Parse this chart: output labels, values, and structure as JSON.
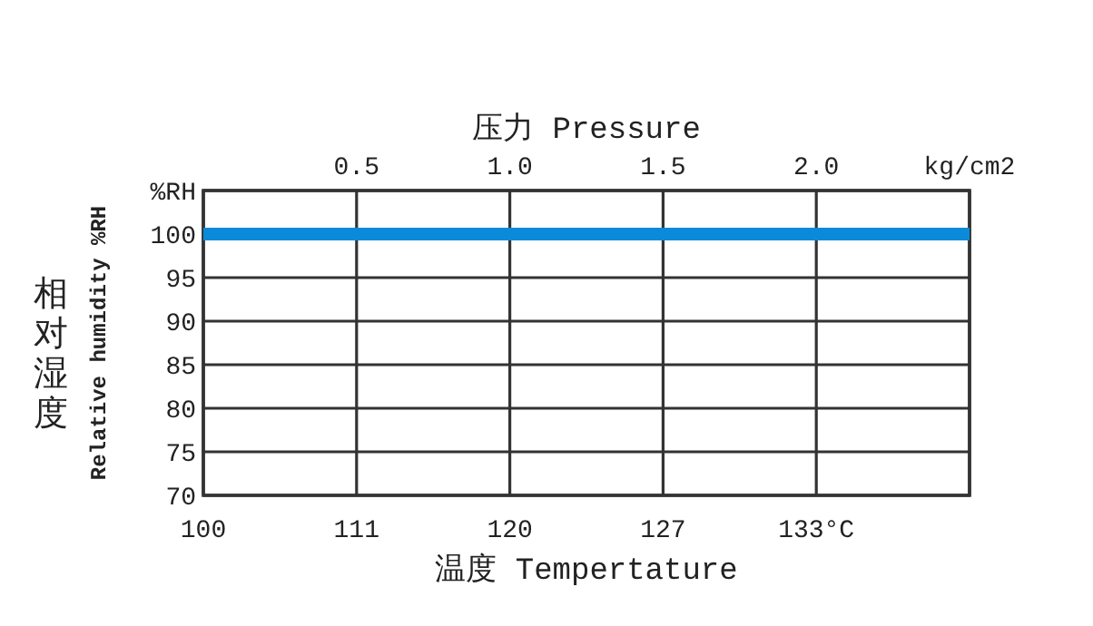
{
  "chart_data": {
    "type": "line",
    "x2label": "压力 Pressure",
    "xlabel": "温度 Tempertature",
    "ylabel": "相对湿度",
    "annotations": [
      "Relative humidity %RH"
    ],
    "categories": [
      "100",
      "111",
      "120",
      "127",
      "133°C",
      null
    ],
    "series": [
      {
        "color": "#0a8ad8",
        "values": [
          100,
          100,
          100,
          100,
          100,
          100
        ]
      }
    ],
    "ylim": [
      70,
      105
    ],
    "yticks": [
      70,
      75,
      80,
      85,
      90,
      95,
      100,
      {
        "value": 105,
        "label": "%RH"
      }
    ],
    "x2lim": [
      0,
      2.5
    ],
    "x2ticks": [
      {
        "value": 0.5,
        "label": "0.5"
      },
      {
        "value": 1.0,
        "label": "1.0"
      },
      {
        "value": 1.5,
        "label": "1.5"
      },
      {
        "value": 2.0,
        "label": "2.0"
      },
      {
        "value": 2.5,
        "label": "kg/cm2"
      }
    ],
    "grid": true
  }
}
